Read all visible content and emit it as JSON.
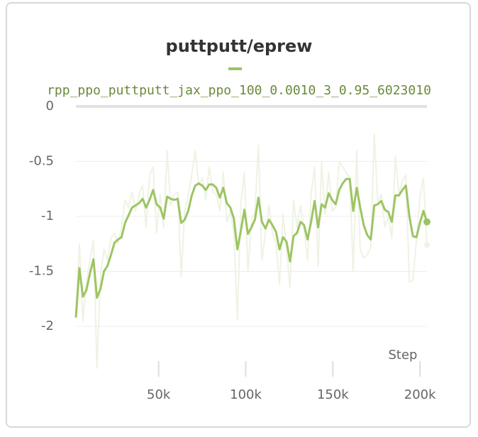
{
  "chart_data": {
    "type": "line",
    "title": "puttputt/eprew",
    "x_label": "Step",
    "x": [
      2500,
      4515,
      6530,
      8545,
      10560,
      12575,
      14590,
      16605,
      18620,
      20635,
      22650,
      24665,
      26680,
      28695,
      30710,
      32725,
      34740,
      36755,
      38770,
      40785,
      42800,
      44815,
      46830,
      48845,
      50860,
      52875,
      54890,
      56905,
      58920,
      60935,
      62950,
      64965,
      66980,
      68995,
      71010,
      73025,
      75040,
      77055,
      79070,
      81085,
      83100,
      85115,
      87130,
      89145,
      91160,
      93175,
      95190,
      97205,
      99220,
      101235,
      103250,
      105265,
      107280,
      109295,
      111310,
      113325,
      115340,
      117355,
      119370,
      121385,
      123400,
      125415,
      127430,
      129445,
      131460,
      133475,
      135490,
      137505,
      139520,
      141535,
      143550,
      145565,
      147580,
      149595,
      151610,
      153625,
      155640,
      157655,
      159670,
      161685,
      163700,
      165715,
      167730,
      169745,
      171760,
      173775,
      175790,
      177805,
      179820,
      181835,
      183850,
      185865,
      187880,
      189895,
      191910,
      193925,
      195940,
      197955,
      199970,
      201985,
      204000
    ],
    "series": [
      {
        "name": "rpp_ppo_puttputt_jax_ppo_100_0.0010_3_0.95_6023010",
        "color": "#9dc463",
        "values": [
          -1.92,
          -1.47,
          -1.73,
          -1.67,
          -1.52,
          -1.39,
          -1.74,
          -1.66,
          -1.5,
          -1.45,
          -1.35,
          -1.24,
          -1.21,
          -1.19,
          -1.06,
          -0.99,
          -0.92,
          -0.9,
          -0.88,
          -0.84,
          -0.92,
          -0.85,
          -0.76,
          -0.89,
          -0.92,
          -1.02,
          -0.82,
          -0.84,
          -0.85,
          -0.84,
          -1.06,
          -1.03,
          -0.95,
          -0.81,
          -0.72,
          -0.7,
          -0.72,
          -0.76,
          -0.71,
          -0.71,
          -0.74,
          -0.83,
          -0.74,
          -0.88,
          -0.92,
          -1.02,
          -1.3,
          -1.13,
          -0.94,
          -1.16,
          -1.1,
          -1.03,
          -0.83,
          -1.05,
          -1.11,
          -1.03,
          -1.08,
          -1.14,
          -1.3,
          -1.19,
          -1.23,
          -1.41,
          -1.18,
          -1.15,
          -1.05,
          -1.08,
          -1.21,
          -1.05,
          -0.86,
          -1.1,
          -0.89,
          -0.92,
          -0.79,
          -0.85,
          -0.89,
          -0.76,
          -0.7,
          -0.66,
          -0.66,
          -0.95,
          -0.74,
          -0.92,
          -1.08,
          -1.17,
          -1.21,
          -0.9,
          -0.89,
          -0.86,
          -0.94,
          -0.96,
          -1.05,
          -0.81,
          -0.81,
          -0.76,
          -0.72,
          -1.0,
          -1.18,
          -1.19,
          -1.06,
          -0.95,
          -1.05
        ]
      },
      {
        "color": "#eef3e3",
        "values": [
          -1.85,
          -1.25,
          -1.95,
          -1.6,
          -1.4,
          -1.22,
          -2.38,
          -1.55,
          -1.3,
          -1.4,
          -1.2,
          -1.15,
          -1.25,
          -1.1,
          -0.85,
          -0.92,
          -0.78,
          -0.95,
          -0.8,
          -0.72,
          -1.1,
          -0.62,
          -0.55,
          -1.15,
          -0.8,
          -1.1,
          -0.4,
          -0.9,
          -0.8,
          -0.78,
          -1.55,
          -0.95,
          -0.82,
          -0.62,
          -0.4,
          -0.72,
          -0.65,
          -0.85,
          -0.55,
          -0.78,
          -0.8,
          -0.95,
          -0.6,
          -1.05,
          -0.95,
          -1.15,
          -1.94,
          -0.88,
          -0.6,
          -1.5,
          -1.05,
          -0.95,
          -0.35,
          -1.4,
          -1.15,
          -0.9,
          -1.15,
          -1.25,
          -1.62,
          -0.98,
          -1.3,
          -1.65,
          -0.85,
          -1.1,
          -0.9,
          -1.12,
          -1.4,
          -0.8,
          -0.55,
          -1.45,
          -0.5,
          -0.98,
          -0.6,
          -0.95,
          -0.92,
          -0.5,
          -0.55,
          -0.6,
          -0.65,
          -1.5,
          -0.4,
          -1.3,
          -1.38,
          -1.35,
          -1.28,
          -0.25,
          -0.88,
          -0.8,
          -1.1,
          -1.0,
          -1.2,
          -0.45,
          -0.8,
          -0.68,
          -0.62,
          -1.6,
          -1.58,
          -1.22,
          -0.82,
          -0.65,
          -1.26
        ]
      }
    ],
    "xlim": [
      2500,
      204000
    ],
    "xticks": [
      {
        "value": 50000,
        "label": "50k"
      },
      {
        "value": 100000,
        "label": "100k"
      },
      {
        "value": 150000,
        "label": "150k"
      },
      {
        "value": 200000,
        "label": "200k"
      }
    ],
    "ylim": [
      -2.2,
      0
    ],
    "yticks": [
      0,
      -0.5,
      -1,
      -1.5,
      -2
    ],
    "grid": true
  }
}
